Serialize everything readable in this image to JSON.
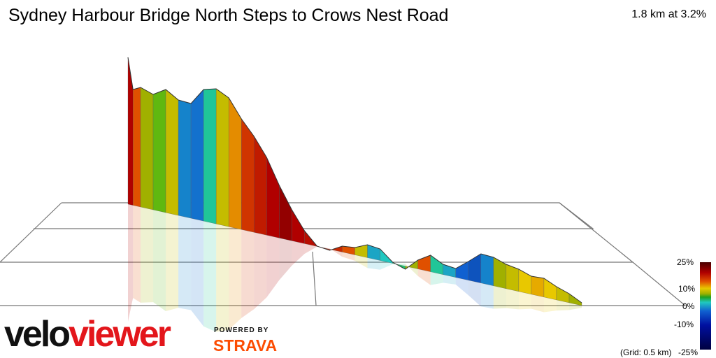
{
  "header": {
    "title": "Sydney Harbour Bridge North Steps to Crows Nest Road",
    "summary": "1.8 km at 3.2%"
  },
  "branding": {
    "logo_part1": "velo",
    "logo_part2": "viewer",
    "powered_by": "POWERED BY",
    "strava": "STRAVA"
  },
  "legend": {
    "labels": [
      "25%",
      "10%",
      "0%",
      "-10%",
      "-25%"
    ],
    "grid_note": "(Grid: 0.5 km)"
  },
  "colors": {
    "steep": "#8b0000",
    "climb": "#d4a000",
    "flat": "#20c020",
    "descent": "#10a0c0",
    "steep_descent": "#0010a0"
  },
  "chart_data": {
    "type": "area",
    "title": "Sydney Harbour Bridge North Steps to Crows Nest Road",
    "xlabel": "",
    "ylabel": "",
    "distance_km": 1.8,
    "average_grade_pct": 3.2,
    "gradient_scale_pct": [
      -25,
      -10,
      0,
      10,
      25
    ],
    "grid_km": 0.5,
    "x": [
      0.0,
      0.02,
      0.05,
      0.1,
      0.15,
      0.2,
      0.25,
      0.3,
      0.35,
      0.4,
      0.45,
      0.5,
      0.55,
      0.6,
      0.65,
      0.7,
      0.75,
      0.8,
      0.85,
      0.9,
      0.95,
      1.0,
      1.05,
      1.1,
      1.15,
      1.2,
      1.25,
      1.3,
      1.35,
      1.4,
      1.45,
      1.5,
      1.55,
      1.6,
      1.65,
      1.7,
      1.75,
      1.8
    ],
    "grade_pct": [
      18,
      12,
      4,
      2,
      6,
      -8,
      -9,
      -3,
      6,
      10,
      14,
      16,
      18,
      20,
      18,
      17,
      16,
      15,
      12,
      6,
      -6,
      -4,
      -2,
      4,
      12,
      -3,
      -6,
      -10,
      -12,
      -8,
      4,
      6,
      8,
      9,
      8,
      6,
      4,
      3
    ]
  }
}
